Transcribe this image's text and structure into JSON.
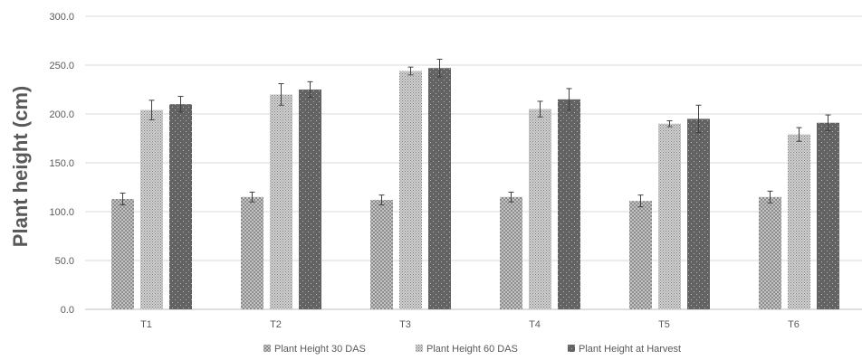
{
  "chart_data": {
    "type": "bar",
    "ylabel": "Plant height (cm)",
    "ylim": [
      0,
      300
    ],
    "ytick_step": 50,
    "ytick_labels": [
      "0.0",
      "50.0",
      "100.0",
      "150.0",
      "200.0",
      "250.0",
      "300.0"
    ],
    "categories": [
      "T1",
      "T2",
      "T3",
      "T4",
      "T5",
      "T6"
    ],
    "grid": true,
    "legend_position": "bottom",
    "series": [
      {
        "name": "Plant Height 30 DAS",
        "values": [
          113,
          115,
          112,
          115,
          111,
          115
        ],
        "errors": [
          6,
          5,
          5,
          5,
          6,
          6
        ],
        "color": "#b3b3b3",
        "pattern": "light-dots"
      },
      {
        "name": "Plant Height 60 DAS",
        "values": [
          204,
          220,
          244,
          205,
          190,
          179
        ],
        "errors": [
          10,
          11,
          4,
          8,
          3,
          7
        ],
        "color": "#a6a6a6",
        "pattern": "fine-dots"
      },
      {
        "name": "Plant Height at Harvest",
        "values": [
          210,
          225,
          247,
          215,
          195,
          191
        ],
        "errors": [
          8,
          8,
          9,
          11,
          14,
          8
        ],
        "color": "#7f7f7f",
        "pattern": "sparse-dots"
      }
    ]
  }
}
